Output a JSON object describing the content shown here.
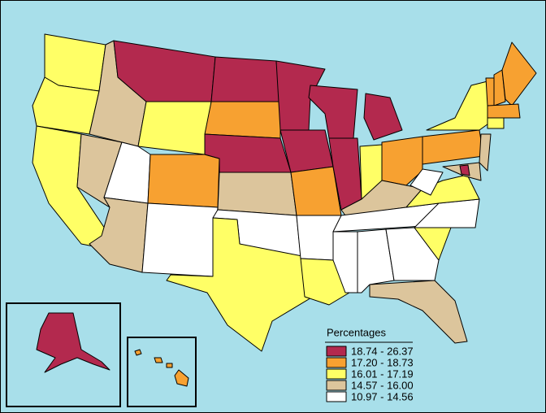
{
  "legend": {
    "title": "Percentages",
    "items": [
      {
        "label": "18.74 - 26.37",
        "color": "#b3294e"
      },
      {
        "label": "17.20 - 18.73",
        "color": "#f7a131"
      },
      {
        "label": "16.01 - 17.19",
        "color": "#ffff66"
      },
      {
        "label": "14.57 - 16.00",
        "color": "#dcc59c"
      },
      {
        "label": "10.97 - 14.56",
        "color": "#ffffff"
      }
    ]
  }
}
